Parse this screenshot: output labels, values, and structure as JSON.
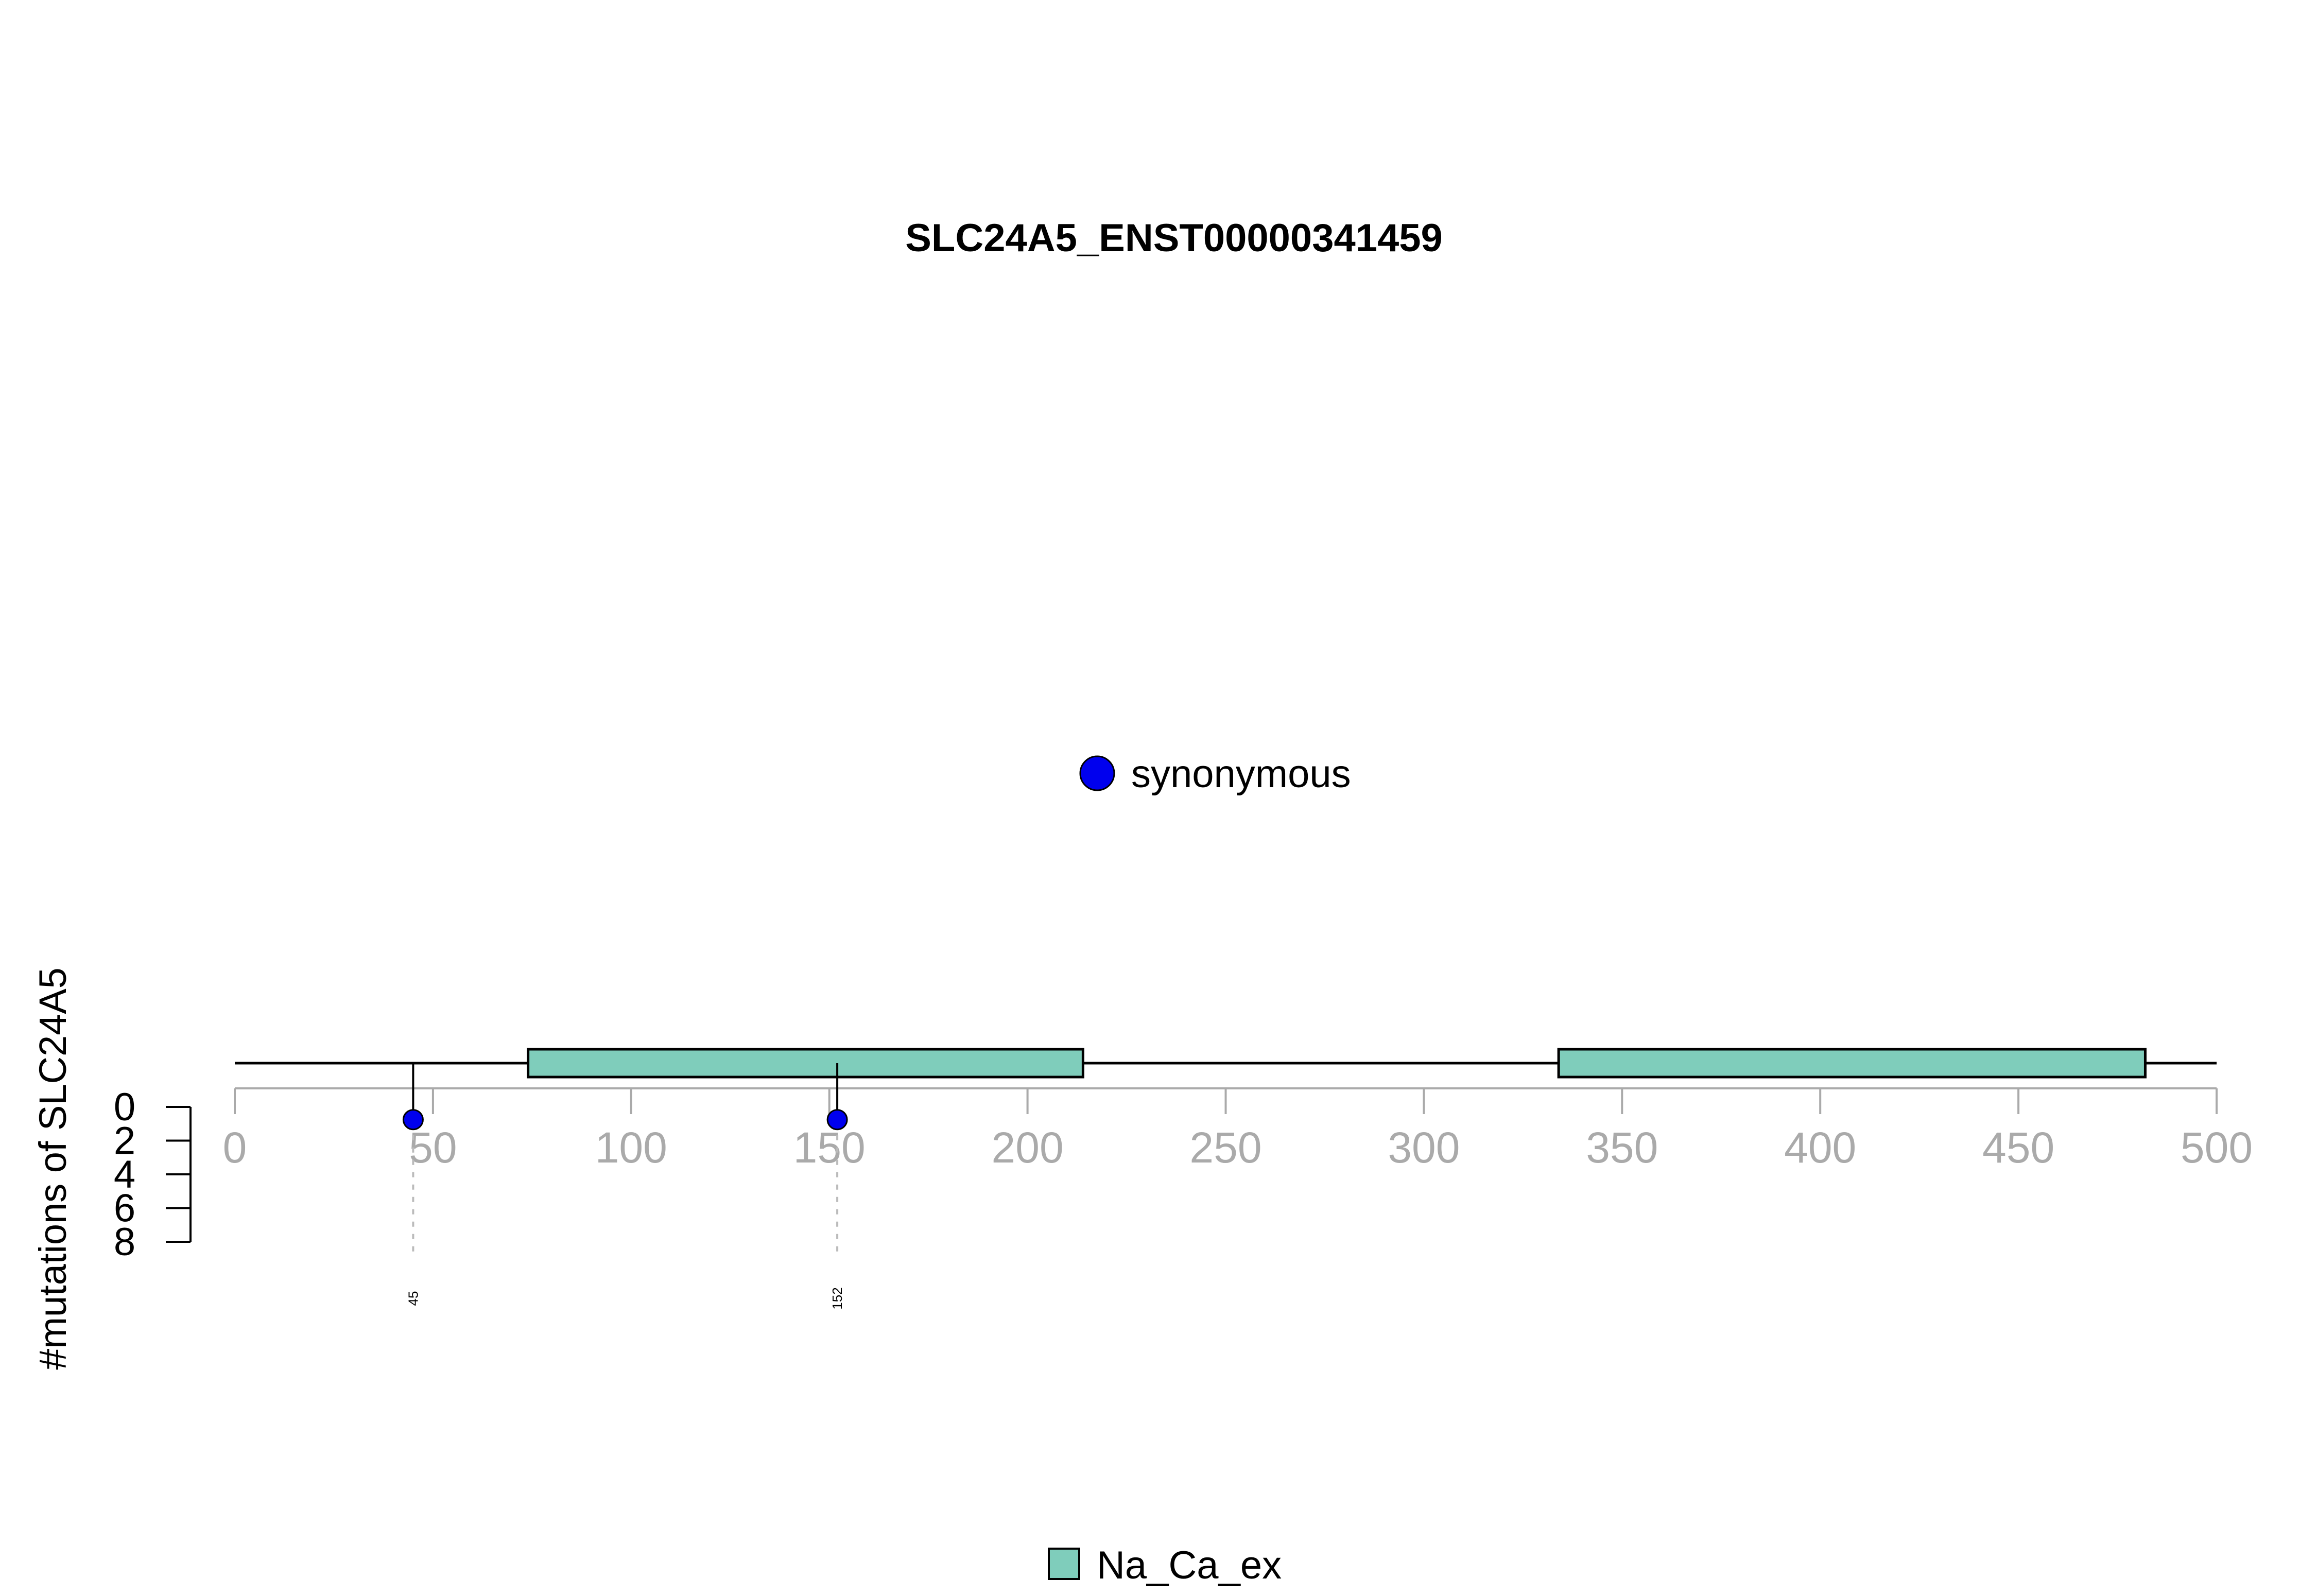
{
  "chart_data": {
    "type": "lollipop",
    "title": "SLC24A5_ENST00000341459",
    "ylabel": "#mutations of SLC24A5",
    "x_ticks": [
      0,
      50,
      100,
      150,
      200,
      250,
      300,
      350,
      400,
      450,
      500
    ],
    "xlim": [
      0,
      500
    ],
    "protein_length": 500,
    "y_ticks": [
      0,
      2,
      4,
      6,
      8
    ],
    "ylim": [
      0,
      8
    ],
    "mutation_legend": [
      {
        "label": "synonymous",
        "color": "#0000ee"
      }
    ],
    "domain_legend": [
      {
        "label": "Na_Ca_ex",
        "color": "#7fcdbb"
      }
    ],
    "domains": [
      {
        "name": "Na_Ca_ex",
        "start": 74,
        "end": 214,
        "color": "#7fcdbb"
      },
      {
        "name": "Na_Ca_ex",
        "start": 334,
        "end": 482,
        "color": "#7fcdbb"
      }
    ],
    "mutations": [
      {
        "position": 45,
        "count": 1,
        "type": "synonymous",
        "label": "45"
      },
      {
        "position": 152,
        "count": 1,
        "type": "synonymous",
        "label": "152"
      }
    ]
  }
}
